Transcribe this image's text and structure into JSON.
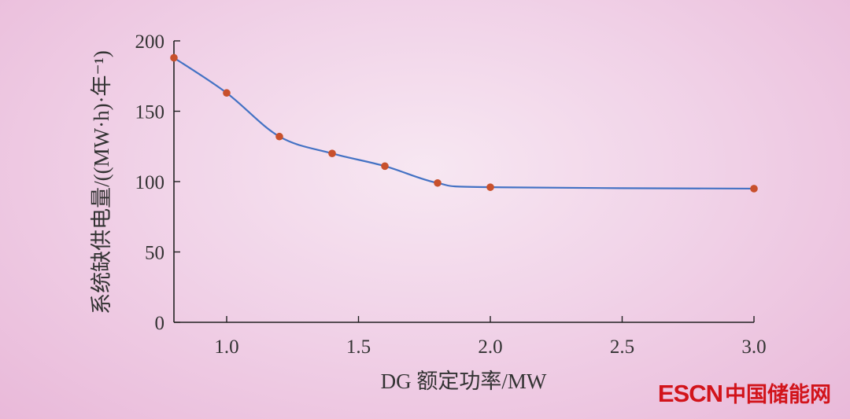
{
  "chart_data": {
    "type": "line",
    "xlabel": "DG 额定功率/MW",
    "ylabel": "系统缺供电量/((MW·h)·年⁻¹)",
    "xlim": [
      0.8,
      3.0
    ],
    "ylim": [
      0,
      200
    ],
    "x_ticks": [
      "1.0",
      "1.5",
      "2.0",
      "2.5",
      "3.0"
    ],
    "y_ticks": [
      "0",
      "50",
      "100",
      "150",
      "200"
    ],
    "grid": false,
    "legend": "none",
    "series": [
      {
        "x": [
          0.8,
          1.0,
          1.2,
          1.4,
          1.6,
          1.8,
          2.0,
          3.0
        ],
        "values": [
          188,
          163,
          132,
          120,
          111,
          99,
          96,
          95
        ],
        "line_color": "#4472c4",
        "marker_color": "#c8502c"
      }
    ]
  },
  "watermark": {
    "brand": "ESCN",
    "text": "中国储能网"
  }
}
